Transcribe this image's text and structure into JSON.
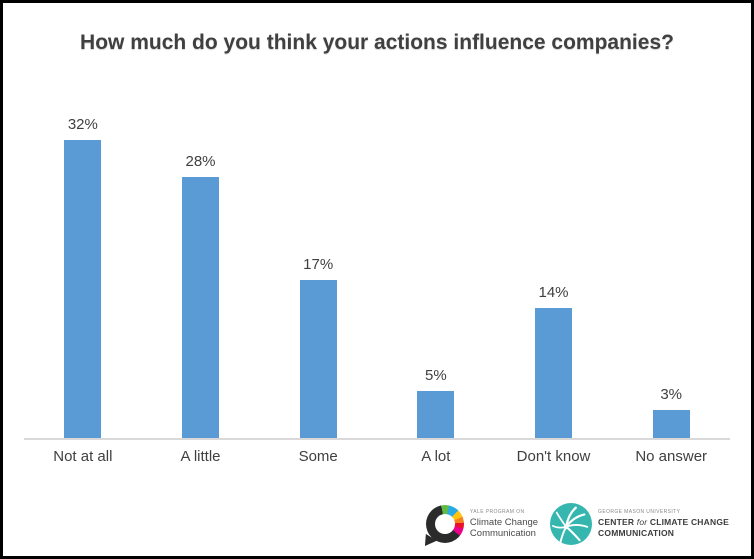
{
  "chart_data": {
    "type": "bar",
    "title": "How much do you think your actions influence companies?",
    "categories": [
      "Not at all",
      "A little",
      "Some",
      "A lot",
      "Don't know",
      "No answer"
    ],
    "values": [
      32,
      28,
      17,
      5,
      14,
      3
    ],
    "value_labels": [
      "32%",
      "28%",
      "17%",
      "5%",
      "14%",
      "3%"
    ],
    "xlabel": "",
    "ylabel": "",
    "ylim": [
      0,
      32
    ],
    "grid": false,
    "legend": false,
    "bar_color": "#5B9BD5",
    "text_color": "#404040",
    "axis_line_color": "#D9D9D9"
  },
  "footer": {
    "yale_logo": {
      "icon": "speech-bubble-ring-icon",
      "eyebrow": "YALE PROGRAM ON",
      "line1": "Climate Change",
      "line2": "Communication",
      "dark_color": "#2B2B2B"
    },
    "gmu_logo": {
      "icon": "palm-starburst-icon",
      "eyebrow": "GEORGE MASON UNIVERSITY",
      "line1_pre": "CENTER",
      "line1_for": "for",
      "line1_post": "CLIMATE CHANGE",
      "line2": "COMMUNICATION",
      "teal_color": "#35B7AF"
    }
  }
}
